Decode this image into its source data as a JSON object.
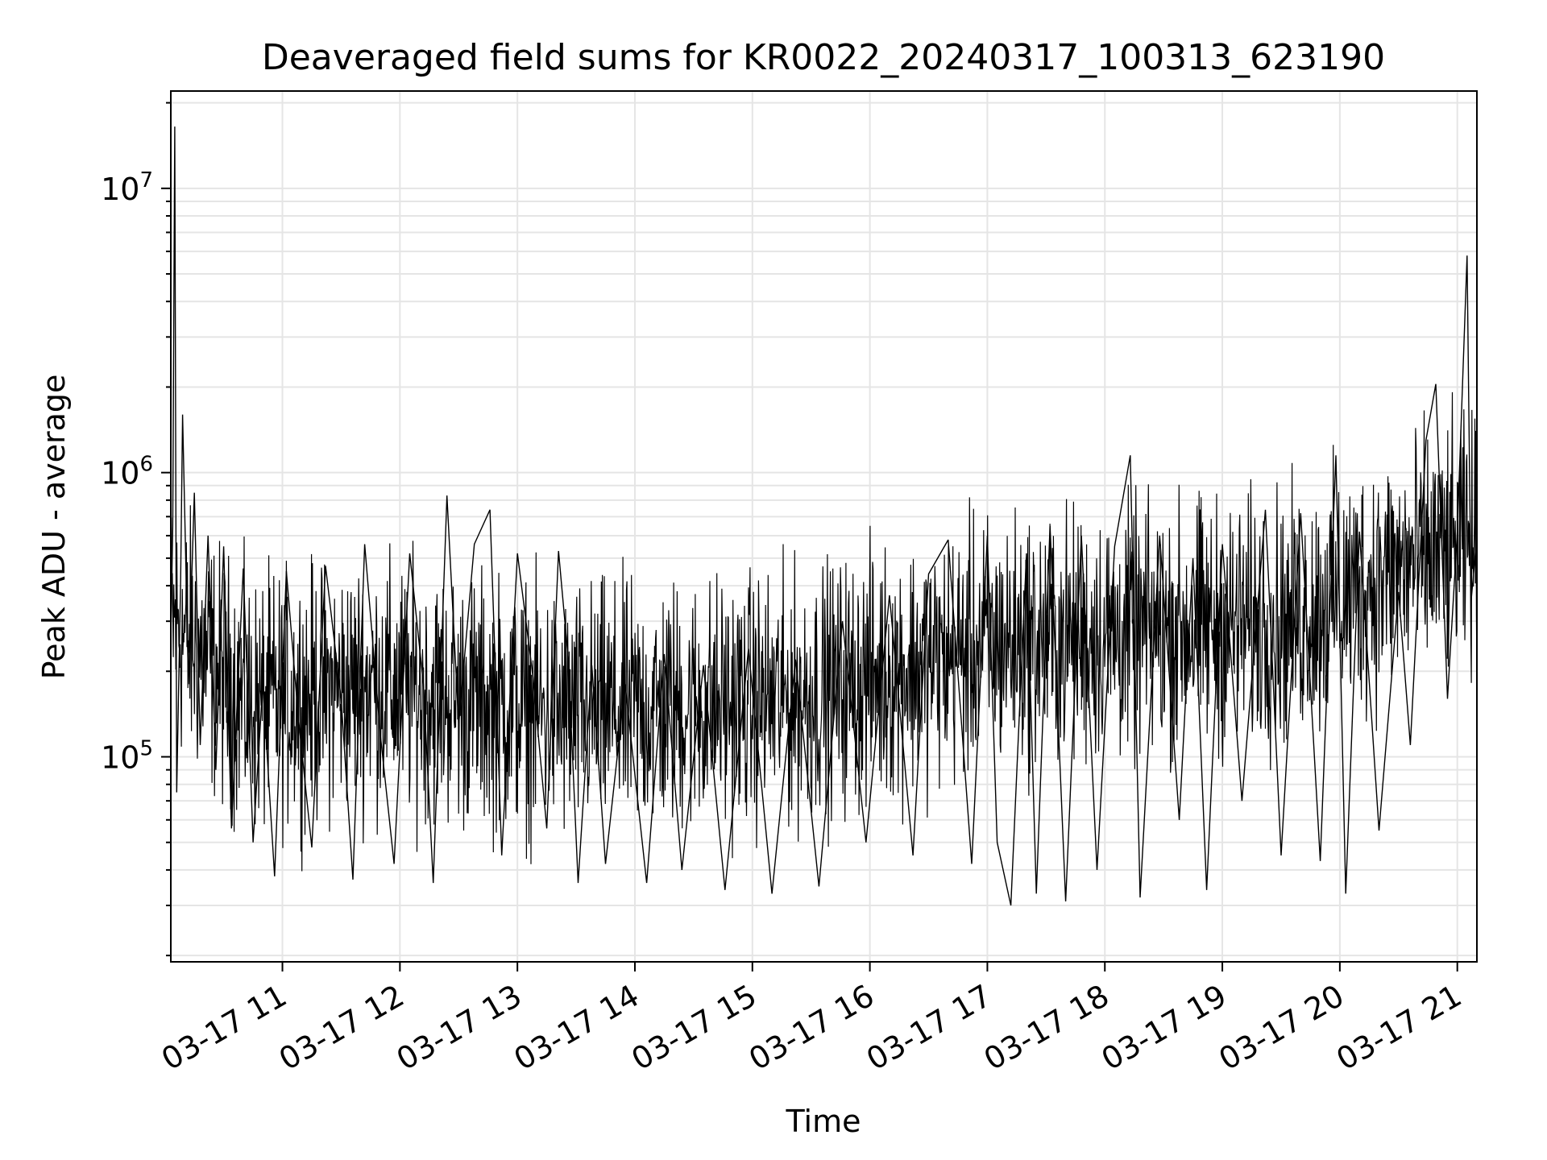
{
  "chart_data": {
    "type": "line",
    "title": "Deaveraged field sums for KR0022_20240317_100313_623190",
    "xlabel": "Time",
    "ylabel": "Peak ADU - average",
    "yscale": "log",
    "xlim": [
      "2024-03-17 10:03",
      "2024-03-17 21:10"
    ],
    "ylim": [
      19000,
      22000000
    ],
    "grid": true,
    "x_ticks": [
      {
        "time": "2024-03-17 11:00",
        "label": "03-17 11"
      },
      {
        "time": "2024-03-17 12:00",
        "label": "03-17 12"
      },
      {
        "time": "2024-03-17 13:00",
        "label": "03-17 13"
      },
      {
        "time": "2024-03-17 14:00",
        "label": "03-17 14"
      },
      {
        "time": "2024-03-17 15:00",
        "label": "03-17 15"
      },
      {
        "time": "2024-03-17 16:00",
        "label": "03-17 16"
      },
      {
        "time": "2024-03-17 17:00",
        "label": "03-17 17"
      },
      {
        "time": "2024-03-17 18:00",
        "label": "03-17 18"
      },
      {
        "time": "2024-03-17 19:00",
        "label": "03-17 19"
      },
      {
        "time": "2024-03-17 20:00",
        "label": "03-17 20"
      },
      {
        "time": "2024-03-17 21:00",
        "label": "03-17 21"
      }
    ],
    "y_ticks": [
      {
        "value": 100000,
        "base": "10",
        "exp": "5"
      },
      {
        "value": 1000000,
        "base": "10",
        "exp": "6"
      },
      {
        "value": 10000000,
        "base": "10",
        "exp": "7"
      }
    ],
    "series": [
      {
        "color": "#000000",
        "points": [
          [
            "2024-03-17 10:03",
            260000
          ],
          [
            "2024-03-17 10:04",
            650000
          ],
          [
            "2024-03-17 10:05",
            16500000
          ],
          [
            "2024-03-17 10:06",
            75000
          ],
          [
            "2024-03-17 10:08",
            420000
          ],
          [
            "2024-03-17 10:09",
            1600000
          ],
          [
            "2024-03-17 10:12",
            180000
          ],
          [
            "2024-03-17 10:15",
            850000
          ],
          [
            "2024-03-17 10:18",
            110000
          ],
          [
            "2024-03-17 10:22",
            600000
          ],
          [
            "2024-03-17 10:26",
            90000
          ],
          [
            "2024-03-17 10:30",
            550000
          ],
          [
            "2024-03-17 10:34",
            56000
          ],
          [
            "2024-03-17 10:40",
            460000
          ],
          [
            "2024-03-17 10:45",
            50000
          ],
          [
            "2024-03-17 10:50",
            180000
          ],
          [
            "2024-03-17 10:56",
            38000
          ],
          [
            "2024-03-17 11:02",
            450000
          ],
          [
            "2024-03-17 11:08",
            140000
          ],
          [
            "2024-03-17 11:15",
            48000
          ],
          [
            "2024-03-17 11:22",
            470000
          ],
          [
            "2024-03-17 11:30",
            160000
          ],
          [
            "2024-03-17 11:36",
            37000
          ],
          [
            "2024-03-17 11:42",
            560000
          ],
          [
            "2024-03-17 11:50",
            120000
          ],
          [
            "2024-03-17 11:57",
            42000
          ],
          [
            "2024-03-17 12:05",
            520000
          ],
          [
            "2024-03-17 12:12",
            180000
          ],
          [
            "2024-03-17 12:17",
            36000
          ],
          [
            "2024-03-17 12:24",
            830000
          ],
          [
            "2024-03-17 12:30",
            130000
          ],
          [
            "2024-03-17 12:38",
            560000
          ],
          [
            "2024-03-17 12:46",
            740000
          ],
          [
            "2024-03-17 12:52",
            45000
          ],
          [
            "2024-03-17 13:00",
            520000
          ],
          [
            "2024-03-17 13:08",
            190000
          ],
          [
            "2024-03-17 13:15",
            56000
          ],
          [
            "2024-03-17 13:21",
            530000
          ],
          [
            "2024-03-17 13:26",
            220000
          ],
          [
            "2024-03-17 13:31",
            36000
          ],
          [
            "2024-03-17 13:38",
            210000
          ],
          [
            "2024-03-17 13:45",
            42000
          ],
          [
            "2024-03-17 13:55",
            180000
          ],
          [
            "2024-03-17 14:06",
            36000
          ],
          [
            "2024-03-17 14:15",
            230000
          ],
          [
            "2024-03-17 14:24",
            40000
          ],
          [
            "2024-03-17 14:35",
            210000
          ],
          [
            "2024-03-17 14:46",
            34000
          ],
          [
            "2024-03-17 14:58",
            240000
          ],
          [
            "2024-03-17 15:10",
            33000
          ],
          [
            "2024-03-17 15:22",
            220000
          ],
          [
            "2024-03-17 15:34",
            35000
          ],
          [
            "2024-03-17 15:46",
            300000
          ],
          [
            "2024-03-17 15:58",
            50000
          ],
          [
            "2024-03-17 16:10",
            370000
          ],
          [
            "2024-03-17 16:22",
            45000
          ],
          [
            "2024-03-17 16:30",
            440000
          ],
          [
            "2024-03-17 16:40",
            580000
          ],
          [
            "2024-03-17 16:52",
            42000
          ],
          [
            "2024-03-17 17:00",
            600000
          ],
          [
            "2024-03-17 17:05",
            50000
          ],
          [
            "2024-03-17 17:12",
            30000
          ],
          [
            "2024-03-17 17:20",
            520000
          ],
          [
            "2024-03-17 17:25",
            33000
          ],
          [
            "2024-03-17 17:32",
            650000
          ],
          [
            "2024-03-17 17:40",
            31000
          ],
          [
            "2024-03-17 17:48",
            600000
          ],
          [
            "2024-03-17 17:56",
            40000
          ],
          [
            "2024-03-17 18:05",
            550000
          ],
          [
            "2024-03-17 18:13",
            1150000
          ],
          [
            "2024-03-17 18:18",
            32000
          ],
          [
            "2024-03-17 18:28",
            600000
          ],
          [
            "2024-03-17 18:38",
            60000
          ],
          [
            "2024-03-17 18:45",
            500000
          ],
          [
            "2024-03-17 18:52",
            34000
          ],
          [
            "2024-03-17 19:00",
            560000
          ],
          [
            "2024-03-17 19:10",
            70000
          ],
          [
            "2024-03-17 19:22",
            740000
          ],
          [
            "2024-03-17 19:30",
            45000
          ],
          [
            "2024-03-17 19:40",
            720000
          ],
          [
            "2024-03-17 19:50",
            43000
          ],
          [
            "2024-03-17 19:58",
            1150000
          ],
          [
            "2024-03-17 20:03",
            33000
          ],
          [
            "2024-03-17 20:10",
            620000
          ],
          [
            "2024-03-17 20:20",
            55000
          ],
          [
            "2024-03-17 20:30",
            380000
          ],
          [
            "2024-03-17 20:36",
            110000
          ],
          [
            "2024-03-17 20:44",
            1300000
          ],
          [
            "2024-03-17 20:49",
            2050000
          ],
          [
            "2024-03-17 20:55",
            160000
          ],
          [
            "2024-03-17 21:00",
            620000
          ],
          [
            "2024-03-17 21:05",
            5800000
          ],
          [
            "2024-03-17 21:07",
            350000
          ],
          [
            "2024-03-17 21:10",
            600000
          ]
        ]
      }
    ]
  }
}
